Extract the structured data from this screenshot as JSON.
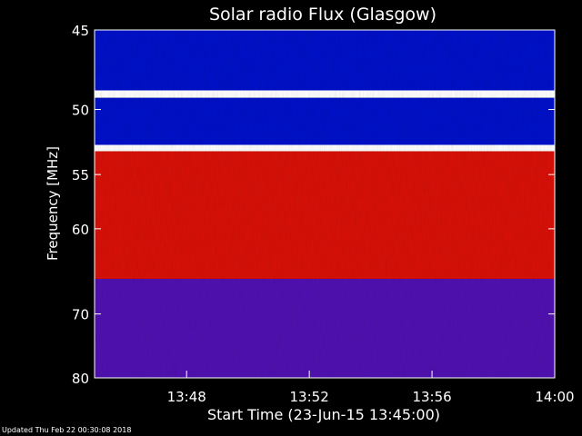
{
  "chart_data": {
    "type": "heatmap",
    "title": "Solar radio Flux (Glasgow)",
    "xlabel": "Start Time (23-Jun-15 13:45:00)",
    "ylabel": "Frequency [MHz]",
    "x_start": "13:45",
    "x_end": "14:00",
    "xlim_minutes": [
      0,
      15
    ],
    "ylim": [
      45,
      80
    ],
    "y_scale": "reciprocal",
    "x_ticks": [
      {
        "minute": 3,
        "label": "13:48"
      },
      {
        "minute": 7,
        "label": "13:52"
      },
      {
        "minute": 11,
        "label": "13:56"
      },
      {
        "minute": 15,
        "label": "14:00"
      }
    ],
    "y_ticks": [
      45,
      50,
      55,
      60,
      70,
      80
    ],
    "color_scale": "blue (low) to red to white (high)",
    "colors": {
      "low": "#0010c8",
      "mid": "#5010b0",
      "high": "#d81008",
      "peak": "#ffffff"
    },
    "bands": [
      {
        "from": 45,
        "to": 48.7,
        "level": "low"
      },
      {
        "from": 48.7,
        "to": 49.2,
        "level": "peak"
      },
      {
        "from": 49.2,
        "to": 52.6,
        "level": "low"
      },
      {
        "from": 52.6,
        "to": 53.1,
        "level": "peak"
      },
      {
        "from": 53.1,
        "to": 65.5,
        "level": "high"
      },
      {
        "from": 65.5,
        "to": 80,
        "level": "mid"
      }
    ],
    "footer": "Updated Thu Feb 22 00:30:08 2018"
  }
}
